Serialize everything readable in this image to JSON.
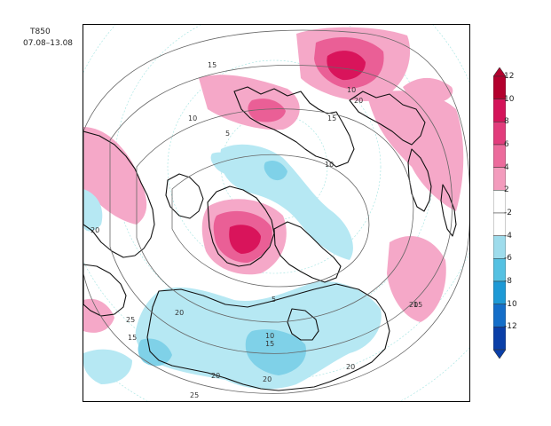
{
  "title": "T850",
  "subtitle": "07.08–13.08",
  "colorbar": {
    "labels": [
      "12",
      "10",
      "8",
      "6",
      "4",
      "2",
      "-2",
      "-4",
      "-6",
      "-8",
      "-10",
      "-12"
    ],
    "colors": [
      "#b3002d",
      "#d4145a",
      "#e23c7c",
      "#ec6b9c",
      "#f39cbd",
      "#ffffff",
      "#ffffff",
      "#9edcec",
      "#55c1e2",
      "#1e9ad6",
      "#146ec9",
      "#0a3fa8"
    ]
  },
  "contour_labels": {
    "c1": "15",
    "c2": "10",
    "c3": "5",
    "c4": "15",
    "c5": "10",
    "c6": "20",
    "c7": "10",
    "c8": "15",
    "c9": "20",
    "c10": "5",
    "c11": "20",
    "c12": "20",
    "c13": "25",
    "c14": "10",
    "c15": "15",
    "c16": "20",
    "c17": "20",
    "c18": "25",
    "c19": "20",
    "c20": "15"
  },
  "anomaly_colors": {
    "warm_light": "#f5a8c8",
    "warm_mid": "#ea5f96",
    "warm_strong": "#d9145b",
    "cold_light": "#b6e8f3",
    "cold_mid": "#7fd1e8"
  }
}
